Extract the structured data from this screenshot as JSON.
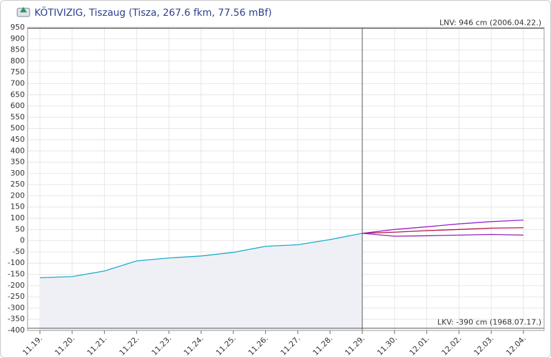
{
  "chart_data": {
    "type": "line",
    "title": "KÖTIVIZIG, Tiszaug (Tisza, 267.6 fkm, 77.56 mBf)",
    "categories": [
      "11.19.",
      "11.20.",
      "11.21.",
      "11.22.",
      "11.23.",
      "11.24.",
      "11.25.",
      "11.26.",
      "11.27.",
      "11.28.",
      "11.29.",
      "11.30.",
      "12.01.",
      "12.02.",
      "12.03.",
      "12.04."
    ],
    "series": [
      {
        "color": "#19a9c9",
        "fill": "#eef0f6",
        "values": [
          -165,
          -160,
          -135,
          -90,
          -77,
          -68,
          -52,
          -25,
          -18,
          5,
          33,
          null,
          null,
          null,
          null,
          null
        ]
      },
      {
        "color": "#b5123c",
        "values": [
          null,
          null,
          null,
          null,
          null,
          null,
          null,
          null,
          null,
          null,
          33,
          38,
          45,
          50,
          56,
          58
        ]
      },
      {
        "color": "#9b1fd0",
        "values": [
          null,
          null,
          null,
          null,
          null,
          null,
          null,
          null,
          null,
          null,
          33,
          50,
          62,
          75,
          85,
          92
        ]
      },
      {
        "color": "#8a1fb0",
        "values": [
          null,
          null,
          null,
          null,
          null,
          null,
          null,
          null,
          null,
          null,
          33,
          20,
          22,
          25,
          28,
          25
        ]
      }
    ],
    "reference_lines": [
      {
        "value": 946,
        "label": "LNV: 946 cm (2006.04.22.)"
      },
      {
        "value": -390,
        "label": "LKV: -390 cm (1968.07.17.)"
      }
    ],
    "ylim": [
      -400,
      950
    ],
    "yticks": [
      -400,
      -350,
      -300,
      -250,
      -200,
      -150,
      -100,
      -50,
      0,
      50,
      100,
      150,
      200,
      250,
      300,
      350,
      400,
      450,
      500,
      550,
      600,
      650,
      700,
      750,
      800,
      850,
      900,
      950
    ],
    "grid": true
  }
}
